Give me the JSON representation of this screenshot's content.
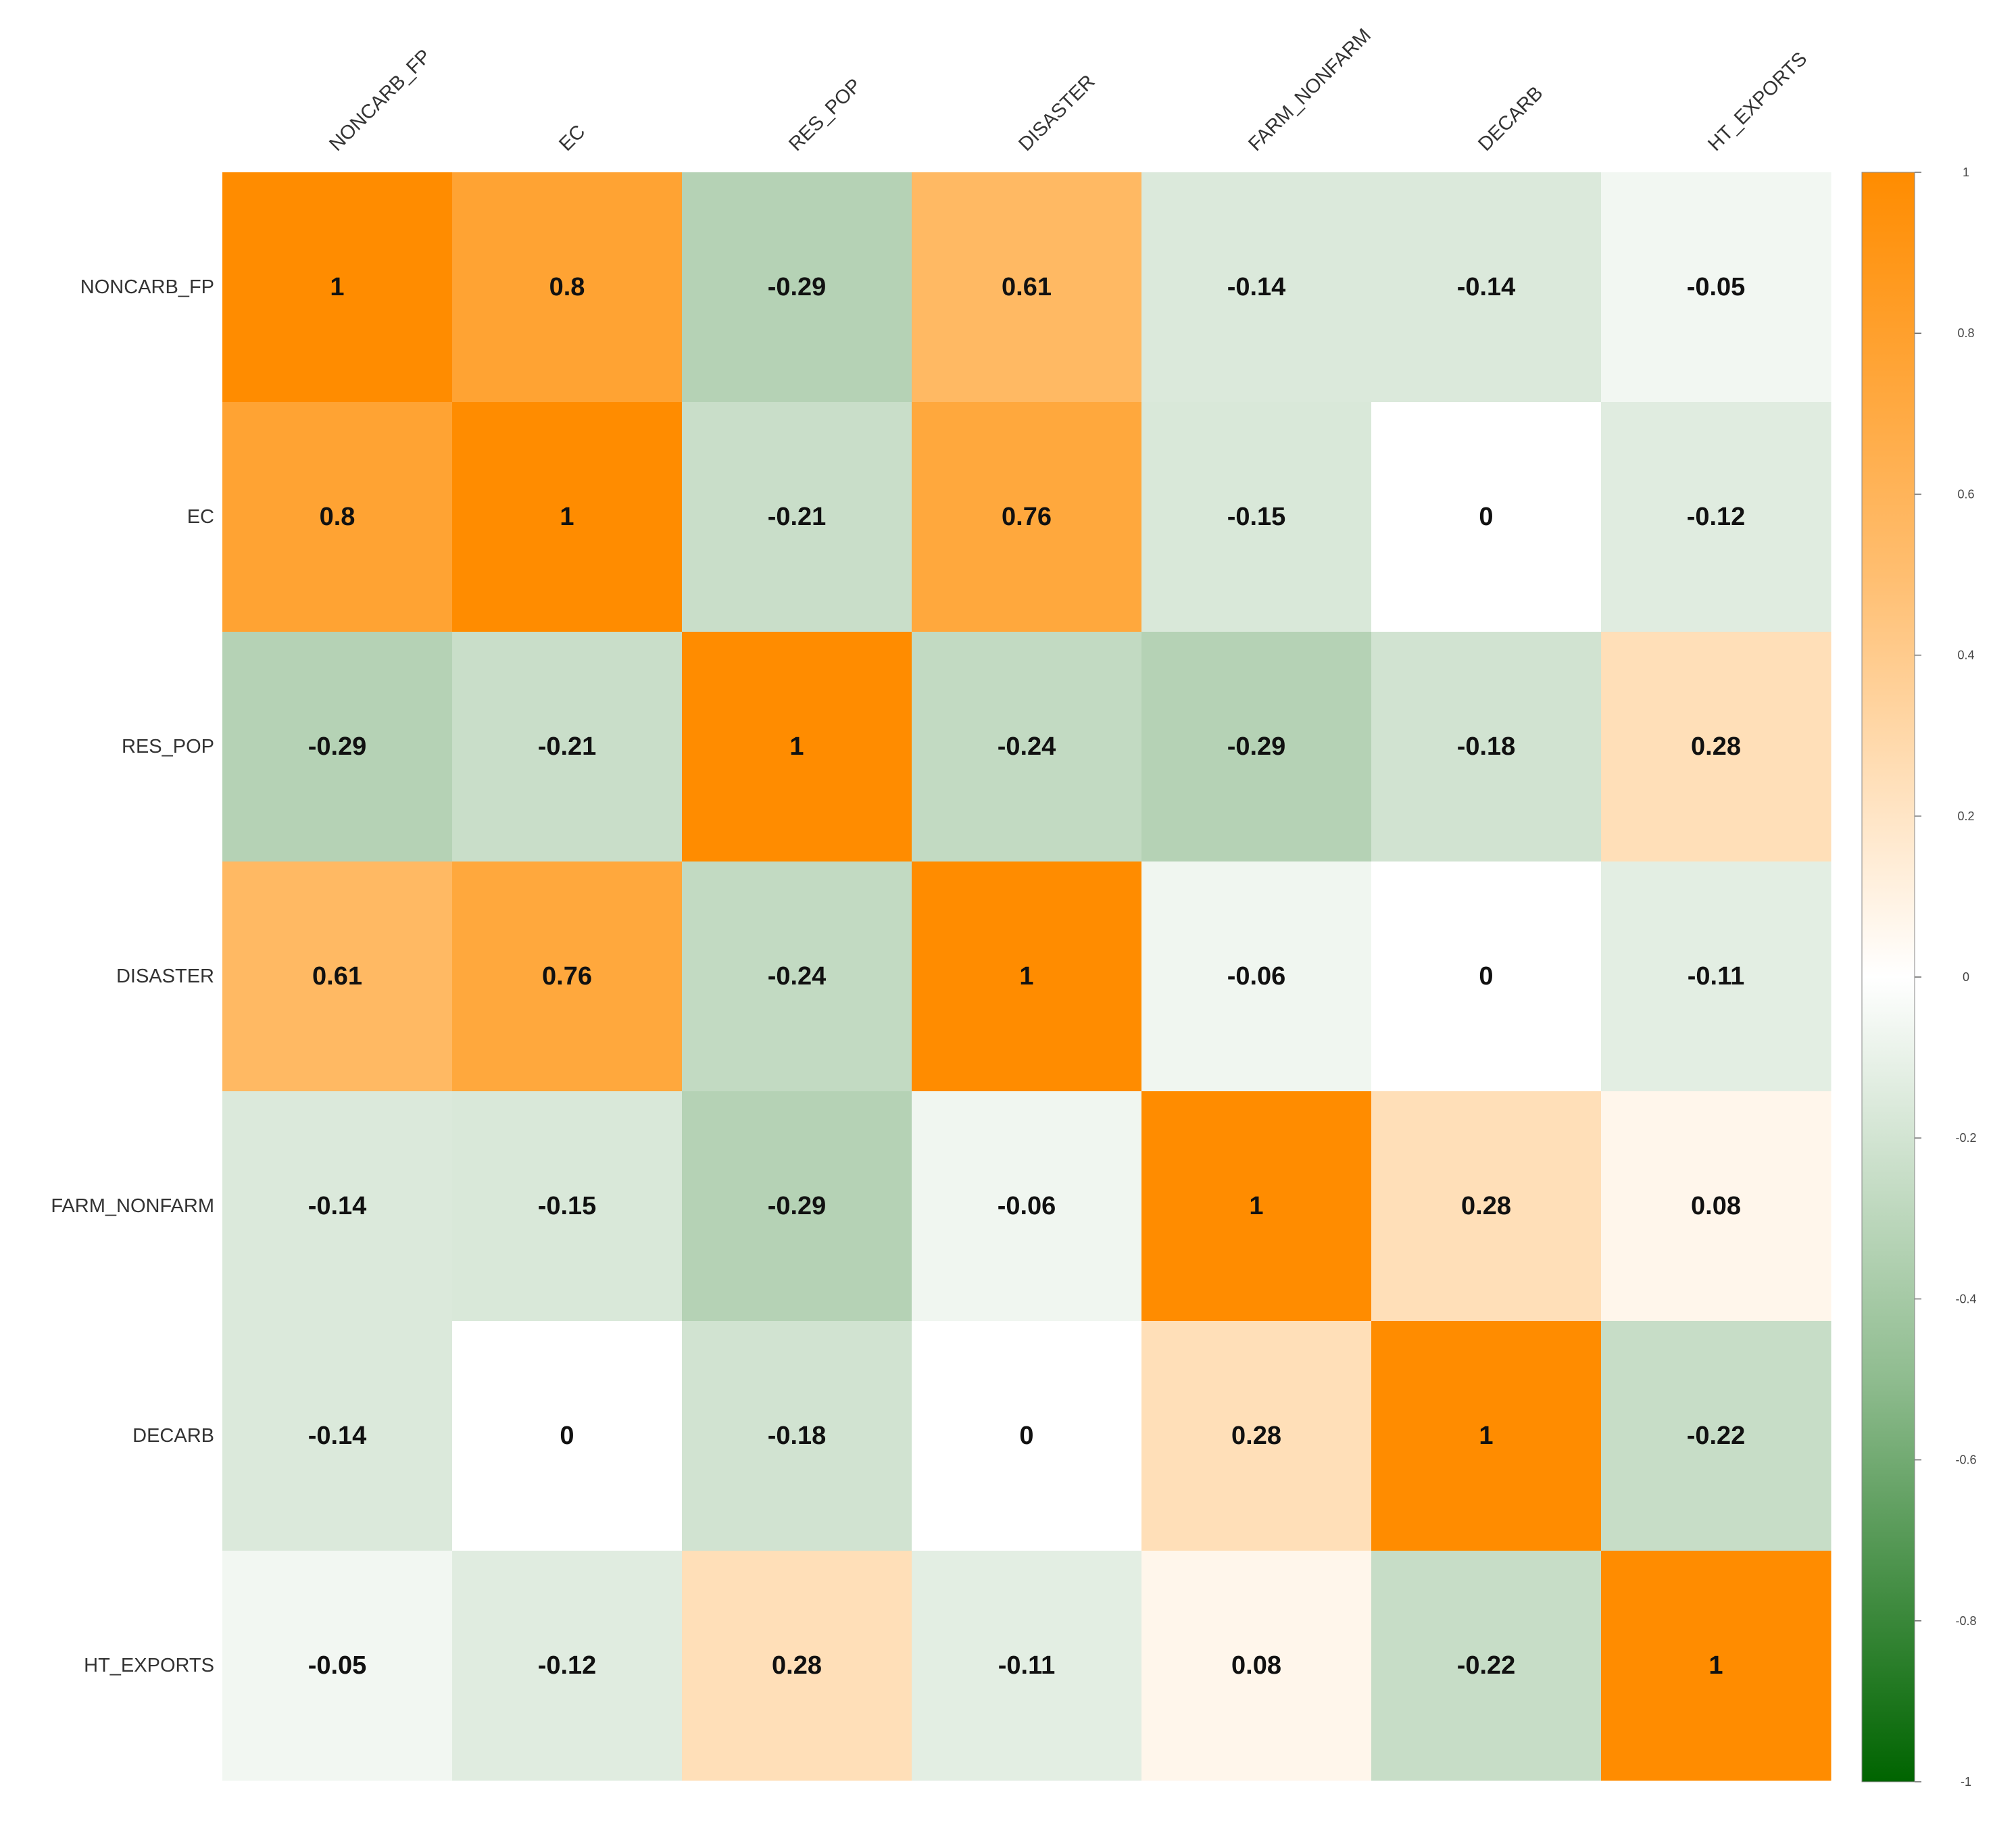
{
  "chart_data": {
    "type": "heatmap",
    "title": "",
    "variables": [
      "NONCARB_FP",
      "EC",
      "RES_POP",
      "DISASTER",
      "FARM_NONFARM",
      "DECARB",
      "HT_EXPORTS"
    ],
    "matrix": [
      [
        1,
        0.8,
        -0.29,
        0.61,
        -0.14,
        -0.14,
        -0.05
      ],
      [
        0.8,
        1,
        -0.21,
        0.76,
        -0.15,
        0,
        -0.12
      ],
      [
        -0.29,
        -0.21,
        1,
        -0.24,
        -0.29,
        -0.18,
        0.28
      ],
      [
        0.61,
        0.76,
        -0.24,
        1,
        -0.06,
        0,
        -0.11
      ],
      [
        -0.14,
        -0.15,
        -0.29,
        -0.06,
        1,
        0.28,
        0.08
      ],
      [
        -0.14,
        0,
        -0.18,
        0,
        0.28,
        1,
        -0.22
      ],
      [
        -0.05,
        -0.12,
        0.28,
        -0.11,
        0.08,
        -0.22,
        1
      ]
    ],
    "colorbar": {
      "range": [
        -1,
        1
      ],
      "ticks": [
        "1",
        "0.8",
        "0.6",
        "0.4",
        "0.2",
        "0",
        "-0.2",
        "-0.4",
        "-0.6",
        "-0.8",
        "-1"
      ],
      "color_low": "#006400",
      "color_mid": "#FFFFFF",
      "color_high": "#FF8C00"
    }
  }
}
